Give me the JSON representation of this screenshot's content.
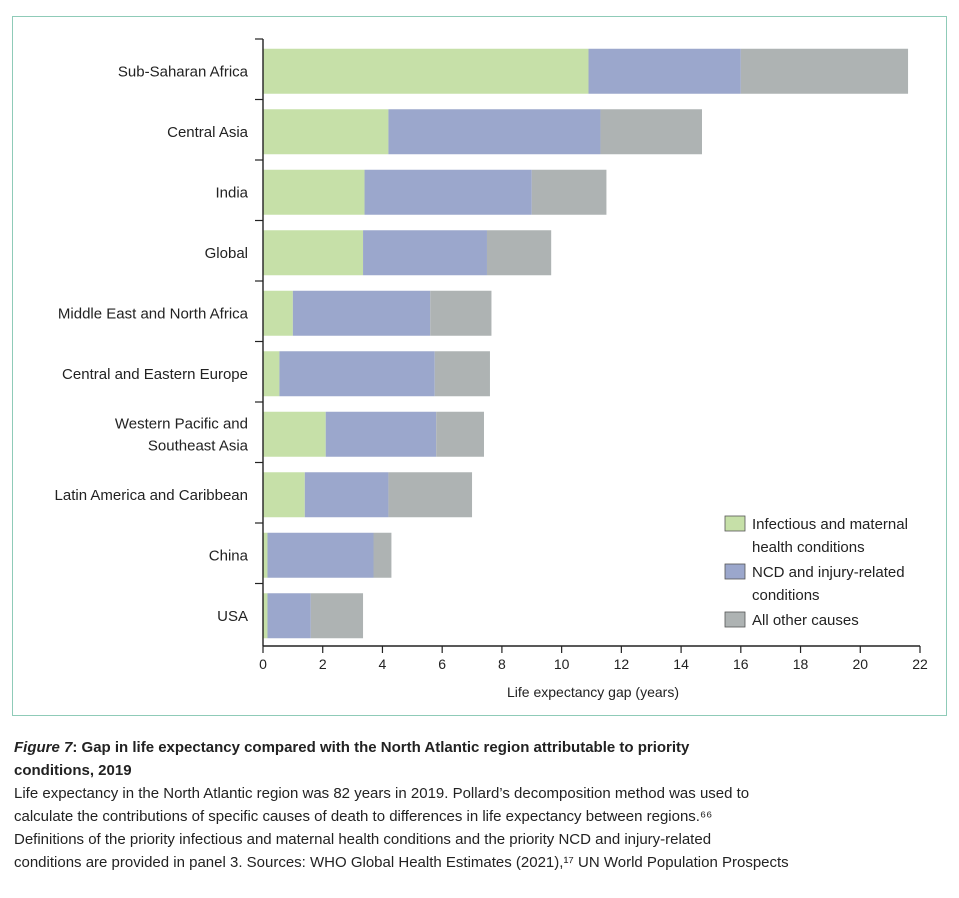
{
  "chart_data": {
    "type": "bar",
    "orientation": "horizontal",
    "stacked": true,
    "categories": [
      "Sub-Saharan Africa",
      "Central Asia",
      "India",
      "Global",
      "Middle East and North Africa",
      "Central and Eastern Europe",
      "Western Pacific and Southeast Asia",
      "Latin America and Caribbean",
      "China",
      "USA"
    ],
    "category_lines": [
      [
        "Sub-Saharan Africa"
      ],
      [
        "Central Asia"
      ],
      [
        "India"
      ],
      [
        "Global"
      ],
      [
        "Middle East and North Africa"
      ],
      [
        "Central and Eastern Europe"
      ],
      [
        "Western Pacific and",
        "Southeast Asia"
      ],
      [
        "Latin America and Caribbean"
      ],
      [
        "China"
      ],
      [
        "USA"
      ]
    ],
    "series": [
      {
        "name": "Infectious and maternal health conditions",
        "name_lines": [
          "Infectious and maternal",
          "health conditions"
        ],
        "color": "#c6e0a8",
        "values": [
          10.9,
          4.2,
          3.4,
          3.35,
          1.0,
          0.55,
          2.1,
          1.4,
          0.15,
          0.15
        ]
      },
      {
        "name": "NCD and injury-related conditions",
        "name_lines": [
          "NCD and injury-related",
          "conditions"
        ],
        "color": "#9ba7cc",
        "values": [
          5.1,
          7.1,
          5.6,
          4.15,
          4.6,
          5.2,
          3.7,
          2.8,
          3.55,
          1.45
        ]
      },
      {
        "name": "All other causes",
        "name_lines": [
          "All other causes"
        ],
        "color": "#aeb3b3",
        "values": [
          5.6,
          3.4,
          2.5,
          2.15,
          2.05,
          1.85,
          1.6,
          2.8,
          0.6,
          1.75
        ]
      }
    ],
    "xlabel": "Life expectancy gap (years)",
    "xlim": [
      0,
      22
    ],
    "xticks": [
      0,
      2,
      4,
      6,
      8,
      10,
      12,
      14,
      16,
      18,
      20,
      22
    ],
    "legend_position": "bottom-right",
    "grid": false
  },
  "caption": {
    "fig_num": "Figure 7",
    "title_rest": ": Gap in life expectancy compared with the North Atlantic region attributable to priority",
    "title_line2": "conditions, 2019",
    "body_lines": [
      "Life expectancy in the North Atlantic region was 82 years in 2019. Pollard’s decomposition method was used to",
      "calculate the contributions of specific causes of death to differences in life expectancy between regions.⁶⁶",
      "Definitions of the priority infectious and maternal health conditions and the priority NCD and injury-related",
      "conditions are provided in panel 3. Sources: WHO Global Health Estimates (2021),¹⁷ UN World Population Prospects"
    ]
  }
}
